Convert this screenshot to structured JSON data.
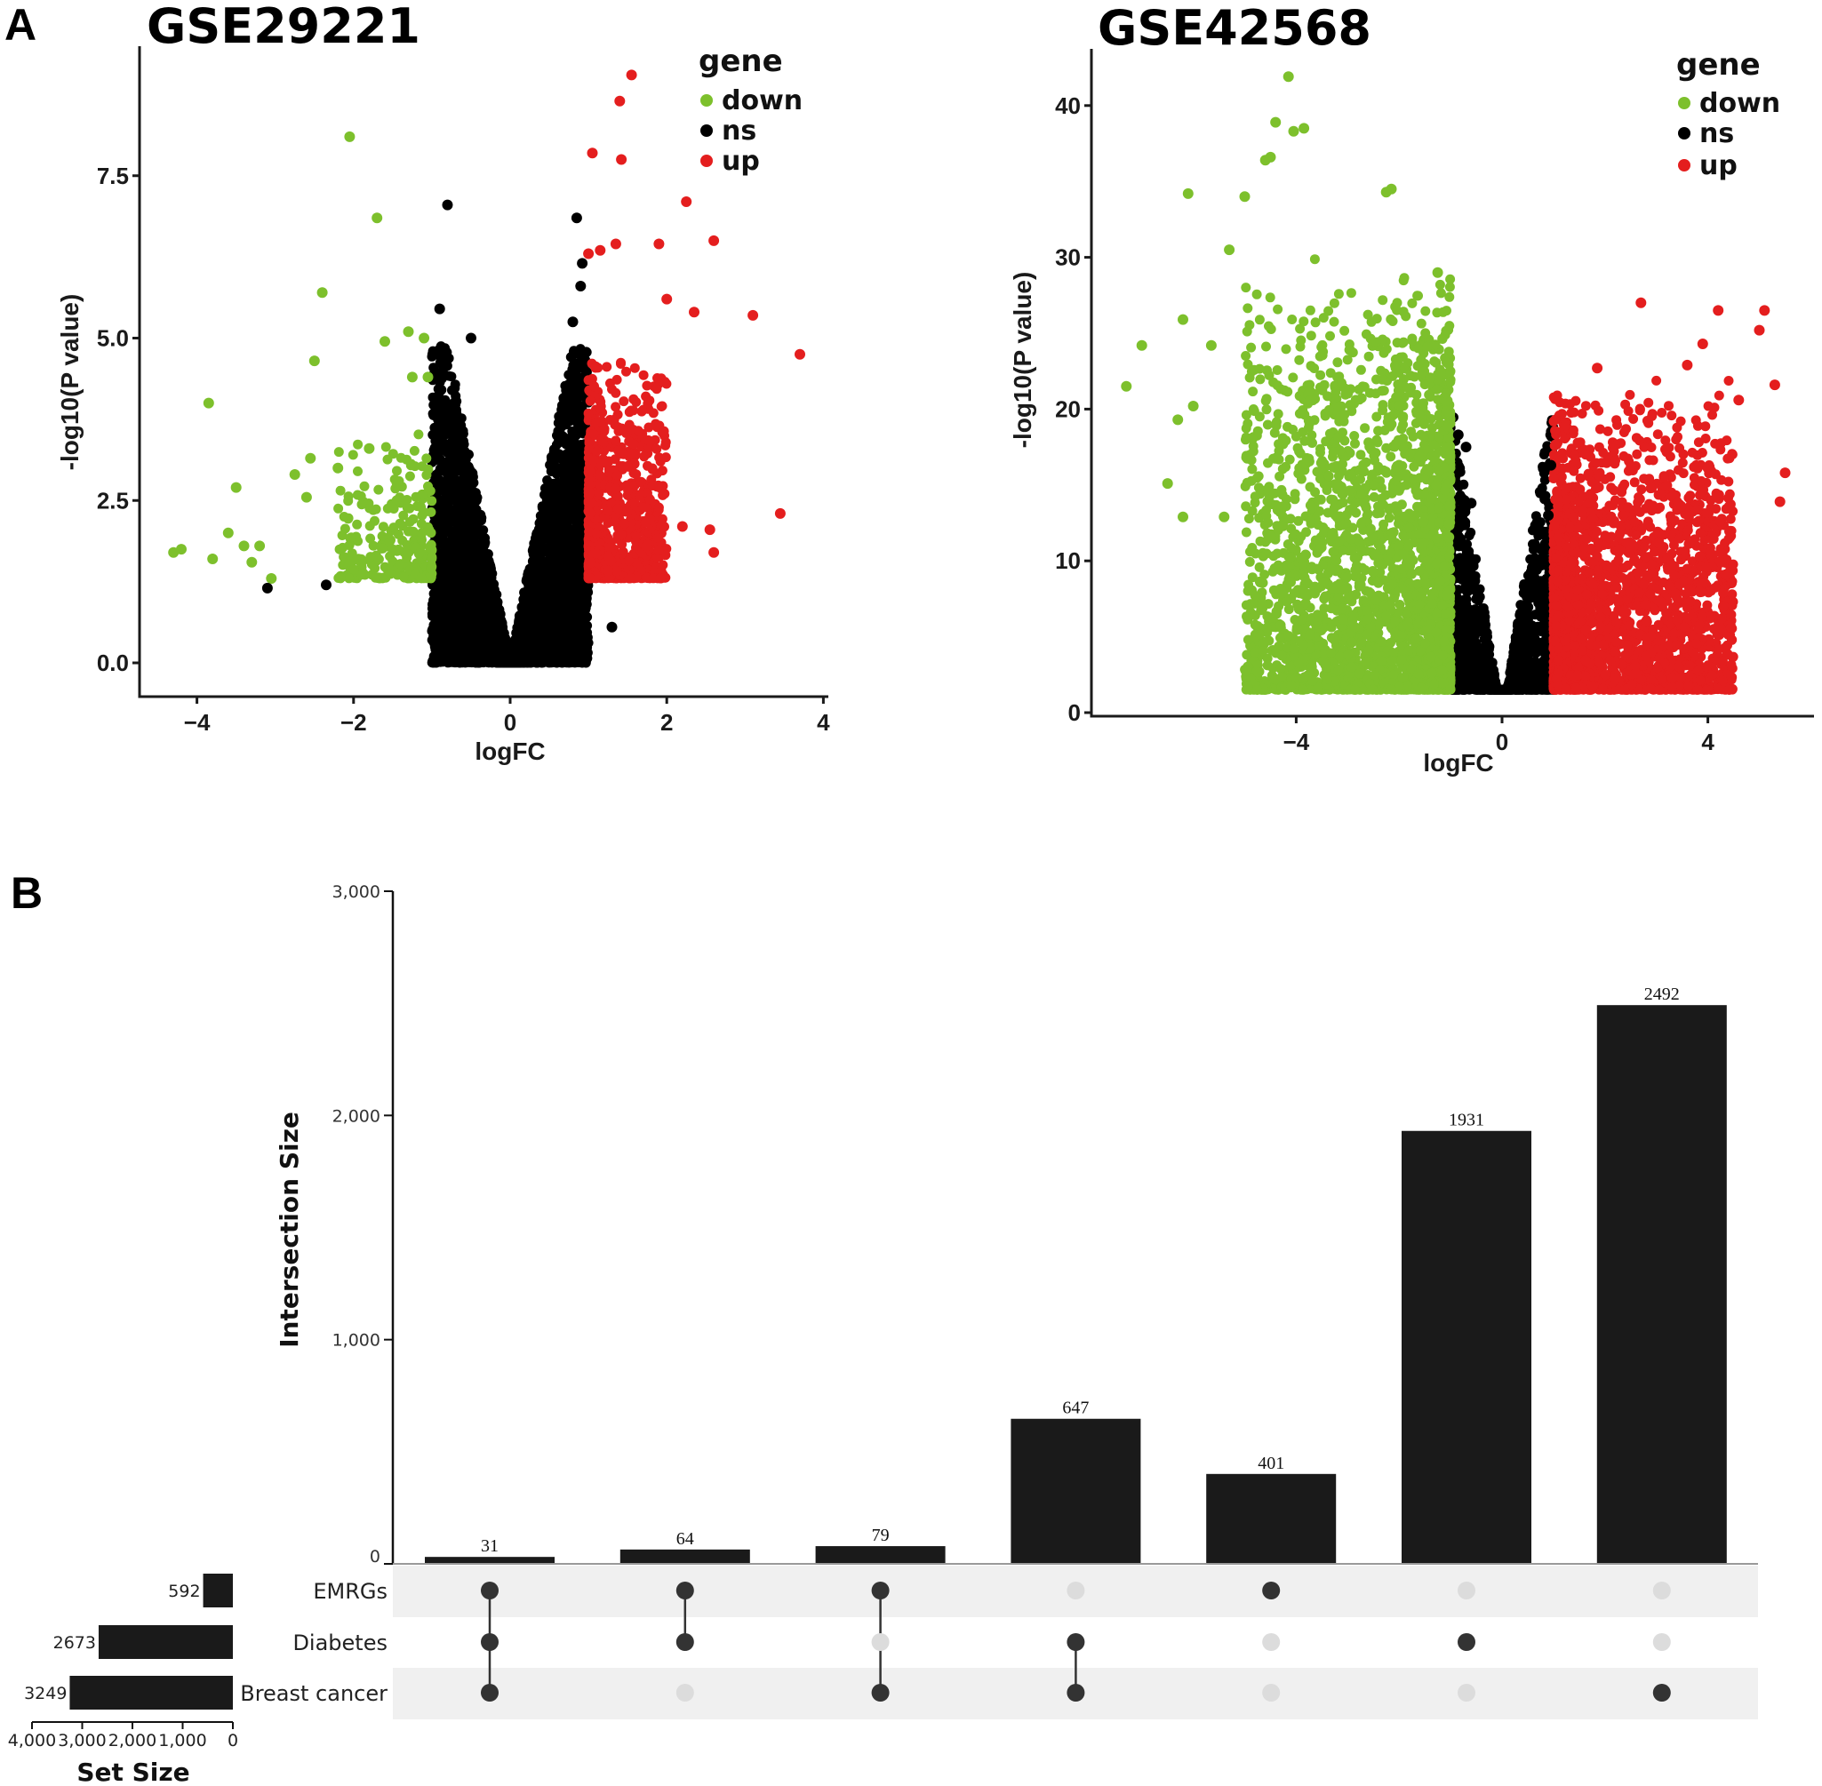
{
  "figure": {
    "panel_a_label": "A",
    "panel_b_label": "B"
  },
  "chart_data": [
    {
      "type": "scatter",
      "title": "GSE29221",
      "xlabel": "logFC",
      "ylabel": "-log10(P value)",
      "xlim": [
        -4.6,
        4.2
      ],
      "ylim": [
        -0.45,
        9.5
      ],
      "xticks": [
        -4,
        -2,
        0,
        2,
        4
      ],
      "xtick_labels": [
        "−4",
        "−2",
        "0",
        "2",
        "4"
      ],
      "yticks": [
        0,
        2.5,
        5,
        7.5
      ],
      "ytick_labels": [
        "0.0",
        "2.5",
        "5.0",
        "7.5"
      ],
      "grid": false,
      "legend": {
        "title": "gene",
        "placement": "top-right",
        "entries": [
          {
            "label": "down",
            "color": "#7dc02c"
          },
          {
            "label": "ns",
            "color": "#000000"
          },
          {
            "label": "up",
            "color": "#e41e1e"
          }
        ]
      },
      "thresholds": {
        "logFC": 1,
        "neg_log10_p": 1.3
      },
      "cloud": {
        "ns_count": 3800,
        "down_count": 260,
        "up_count": 900,
        "ns_xrange": [
          -1.0,
          1.0
        ],
        "ns_ymax": 4.9,
        "down_xrange": [
          -2.2,
          -1.0
        ],
        "down_ymax": 3.6,
        "up_xrange": [
          1.0,
          2.0
        ],
        "up_ymax": 4.9,
        "seed": 29221
      },
      "points": [
        {
          "group": "down",
          "x": -4.3,
          "y": 1.7
        },
        {
          "group": "down",
          "x": -4.2,
          "y": 1.75
        },
        {
          "group": "down",
          "x": -3.85,
          "y": 4.0
        },
        {
          "group": "down",
          "x": -3.8,
          "y": 1.6
        },
        {
          "group": "down",
          "x": -3.6,
          "y": 2.0
        },
        {
          "group": "down",
          "x": -3.5,
          "y": 2.7
        },
        {
          "group": "down",
          "x": -3.4,
          "y": 1.8
        },
        {
          "group": "down",
          "x": -3.3,
          "y": 1.55
        },
        {
          "group": "down",
          "x": -3.2,
          "y": 1.8
        },
        {
          "group": "down",
          "x": -3.05,
          "y": 1.3
        },
        {
          "group": "down",
          "x": -2.75,
          "y": 2.9
        },
        {
          "group": "down",
          "x": -2.6,
          "y": 2.55
        },
        {
          "group": "down",
          "x": -2.55,
          "y": 3.15
        },
        {
          "group": "down",
          "x": -2.5,
          "y": 4.65
        },
        {
          "group": "down",
          "x": -2.4,
          "y": 5.7
        },
        {
          "group": "down",
          "x": -2.05,
          "y": 8.1
        },
        {
          "group": "down",
          "x": -1.7,
          "y": 6.85
        },
        {
          "group": "down",
          "x": -1.6,
          "y": 4.95
        },
        {
          "group": "down",
          "x": -1.3,
          "y": 5.1
        },
        {
          "group": "down",
          "x": -1.1,
          "y": 5.0
        },
        {
          "group": "down",
          "x": -1.25,
          "y": 4.4
        },
        {
          "group": "down",
          "x": -1.05,
          "y": 4.4
        },
        {
          "group": "down",
          "x": -2.2,
          "y": 3.0
        },
        {
          "group": "down",
          "x": -1.8,
          "y": 3.3
        },
        {
          "group": "ns",
          "x": -3.1,
          "y": 1.15
        },
        {
          "group": "ns",
          "x": -2.35,
          "y": 1.2
        },
        {
          "group": "ns",
          "x": -0.8,
          "y": 7.05
        },
        {
          "group": "ns",
          "x": -0.9,
          "y": 5.45
        },
        {
          "group": "ns",
          "x": -0.5,
          "y": 5.0
        },
        {
          "group": "ns",
          "x": 0.85,
          "y": 6.85
        },
        {
          "group": "ns",
          "x": 0.92,
          "y": 6.15
        },
        {
          "group": "ns",
          "x": 0.9,
          "y": 5.8
        },
        {
          "group": "ns",
          "x": 0.8,
          "y": 5.25
        },
        {
          "group": "ns",
          "x": 1.3,
          "y": 0.55
        },
        {
          "group": "up",
          "x": 1.55,
          "y": 9.05
        },
        {
          "group": "up",
          "x": 1.4,
          "y": 8.65
        },
        {
          "group": "up",
          "x": 1.05,
          "y": 7.85
        },
        {
          "group": "up",
          "x": 1.42,
          "y": 7.75
        },
        {
          "group": "up",
          "x": 2.25,
          "y": 7.1
        },
        {
          "group": "up",
          "x": 1.0,
          "y": 6.3
        },
        {
          "group": "up",
          "x": 1.15,
          "y": 6.35
        },
        {
          "group": "up",
          "x": 1.35,
          "y": 6.45
        },
        {
          "group": "up",
          "x": 1.9,
          "y": 6.45
        },
        {
          "group": "up",
          "x": 2.6,
          "y": 6.5
        },
        {
          "group": "up",
          "x": 2.0,
          "y": 5.6
        },
        {
          "group": "up",
          "x": 2.35,
          "y": 5.4
        },
        {
          "group": "up",
          "x": 3.1,
          "y": 5.35
        },
        {
          "group": "up",
          "x": 3.7,
          "y": 4.75
        },
        {
          "group": "up",
          "x": 3.45,
          "y": 2.3
        },
        {
          "group": "up",
          "x": 2.6,
          "y": 1.7
        },
        {
          "group": "up",
          "x": 2.55,
          "y": 2.05
        },
        {
          "group": "up",
          "x": 2.2,
          "y": 2.1
        }
      ]
    },
    {
      "type": "scatter",
      "title": "GSE42568",
      "xlabel": "logFC",
      "ylabel": "-log10(P value)",
      "xlim": [
        -7.8,
        6.1
      ],
      "ylim": [
        -0.8,
        44
      ],
      "xticks": [
        -4,
        0,
        4
      ],
      "xtick_labels": [
        "−4",
        "0",
        "4"
      ],
      "yticks": [
        0,
        10,
        20,
        30,
        40
      ],
      "ytick_labels": [
        "0",
        "10",
        "20",
        "30",
        "40"
      ],
      "grid": false,
      "legend": {
        "title": "gene",
        "placement": "top-right",
        "entries": [
          {
            "label": "down",
            "color": "#7dc02c"
          },
          {
            "label": "ns",
            "color": "#000000"
          },
          {
            "label": "up",
            "color": "#e41e1e"
          }
        ]
      },
      "thresholds": {
        "logFC": 1,
        "neg_log10_p": 1.5
      },
      "cloud": {
        "ns_count": 1500,
        "down_count": 2600,
        "up_count": 2300,
        "ns_xrange": [
          -1.0,
          1.0
        ],
        "ns_ymax": 18,
        "down_xrange": [
          -5.0,
          -1.0
        ],
        "down_ymax": 30,
        "up_xrange": [
          1.0,
          4.5
        ],
        "up_ymax": 22,
        "seed": 42568
      },
      "points": [
        {
          "group": "down",
          "x": -4.15,
          "y": 41.9
        },
        {
          "group": "down",
          "x": -4.4,
          "y": 38.9
        },
        {
          "group": "down",
          "x": -4.05,
          "y": 38.3
        },
        {
          "group": "down",
          "x": -3.85,
          "y": 38.5
        },
        {
          "group": "down",
          "x": -4.6,
          "y": 36.4
        },
        {
          "group": "down",
          "x": -4.5,
          "y": 36.6
        },
        {
          "group": "down",
          "x": -6.1,
          "y": 34.2
        },
        {
          "group": "down",
          "x": -5.0,
          "y": 34.0
        },
        {
          "group": "down",
          "x": -2.15,
          "y": 34.5
        },
        {
          "group": "down",
          "x": -2.25,
          "y": 34.3
        },
        {
          "group": "down",
          "x": -5.3,
          "y": 30.5
        },
        {
          "group": "down",
          "x": -1.25,
          "y": 29.0
        },
        {
          "group": "down",
          "x": -6.2,
          "y": 25.9
        },
        {
          "group": "down",
          "x": -5.65,
          "y": 24.2
        },
        {
          "group": "down",
          "x": -7.0,
          "y": 24.2
        },
        {
          "group": "down",
          "x": -7.3,
          "y": 21.5
        },
        {
          "group": "down",
          "x": -6.0,
          "y": 20.2
        },
        {
          "group": "down",
          "x": -6.3,
          "y": 19.3
        },
        {
          "group": "down",
          "x": -6.5,
          "y": 15.1
        },
        {
          "group": "down",
          "x": -6.2,
          "y": 12.9
        },
        {
          "group": "down",
          "x": -5.4,
          "y": 12.9
        },
        {
          "group": "down",
          "x": -4.5,
          "y": 11.6
        },
        {
          "group": "down",
          "x": -3.9,
          "y": 10.2
        },
        {
          "group": "down",
          "x": -3.25,
          "y": 4.8
        },
        {
          "group": "ns",
          "x": -0.85,
          "y": 18.3
        },
        {
          "group": "ns",
          "x": -0.7,
          "y": 17.5
        },
        {
          "group": "ns",
          "x": 0.95,
          "y": 16.3
        },
        {
          "group": "ns",
          "x": -0.6,
          "y": 13.8
        },
        {
          "group": "ns",
          "x": 0.9,
          "y": 13.0
        },
        {
          "group": "up",
          "x": 2.7,
          "y": 27.0
        },
        {
          "group": "up",
          "x": 4.2,
          "y": 26.5
        },
        {
          "group": "up",
          "x": 5.1,
          "y": 26.5
        },
        {
          "group": "up",
          "x": 5.0,
          "y": 25.2
        },
        {
          "group": "up",
          "x": 3.9,
          "y": 24.3
        },
        {
          "group": "up",
          "x": 1.85,
          "y": 22.7
        },
        {
          "group": "up",
          "x": 3.6,
          "y": 22.9
        },
        {
          "group": "up",
          "x": 5.3,
          "y": 21.6
        },
        {
          "group": "up",
          "x": 4.6,
          "y": 20.6
        },
        {
          "group": "up",
          "x": 5.5,
          "y": 15.8
        },
        {
          "group": "up",
          "x": 5.4,
          "y": 13.9
        },
        {
          "group": "up",
          "x": 4.35,
          "y": 9.1
        },
        {
          "group": "up",
          "x": 4.3,
          "y": 7.0
        },
        {
          "group": "up",
          "x": 2.6,
          "y": 2.6
        },
        {
          "group": "up",
          "x": 2.2,
          "y": 2.2
        }
      ]
    },
    {
      "type": "bar",
      "subtype": "upset",
      "ylabel": "Intersection Size",
      "ylim": [
        0,
        3000
      ],
      "yticks": [
        0,
        1000,
        2000,
        3000
      ],
      "ytick_labels": [
        "0",
        "1,000",
        "2,000",
        "3,000"
      ],
      "intersections": [
        {
          "value": 31,
          "label": "31",
          "sets": [
            "EMRGs",
            "Diabetes",
            "Breast cancer"
          ]
        },
        {
          "value": 64,
          "label": "64",
          "sets": [
            "EMRGs",
            "Diabetes"
          ]
        },
        {
          "value": 79,
          "label": "79",
          "sets": [
            "EMRGs",
            "Breast cancer"
          ]
        },
        {
          "value": 647,
          "label": "647",
          "sets": [
            "Diabetes",
            "Breast cancer"
          ]
        },
        {
          "value": 401,
          "label": "401",
          "sets": [
            "EMRGs"
          ]
        },
        {
          "value": 1931,
          "label": "1931",
          "sets": [
            "Diabetes"
          ]
        },
        {
          "value": 2492,
          "label": "2492",
          "sets": [
            "Breast cancer"
          ]
        }
      ],
      "sets": [
        {
          "name": "EMRGs",
          "size": 592,
          "label": "592"
        },
        {
          "name": "Diabetes",
          "size": 2673,
          "label": "2673"
        },
        {
          "name": "Breast cancer",
          "size": 3249,
          "label": "3249"
        }
      ],
      "set_size_axis": {
        "title": "Set Size",
        "xlim": [
          0,
          4000
        ],
        "ticks": [
          4000,
          3000,
          2000,
          1000,
          0
        ],
        "tick_labels": [
          "4,000",
          "3,000",
          "2,000",
          "1,000",
          "0"
        ]
      },
      "colors": {
        "bar": "#1a1a1a",
        "dot_active": "#333333",
        "dot_inactive": "#dcdcdc",
        "stripe": "#f0f0f0"
      }
    }
  ]
}
